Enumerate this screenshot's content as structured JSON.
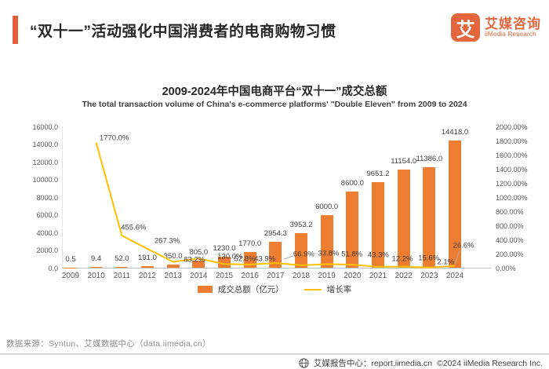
{
  "header": {
    "title": "“双十一”活动强化中国消费者的电商购物习惯",
    "logo": {
      "mark": "艾",
      "name_cn": "艾媒咨询",
      "name_en": "iiMedia Research"
    }
  },
  "chart": {
    "title": "2009-2024年中国电商平台“双十一”成交总额",
    "subtitle": "The total transaction volume of China's e-commerce platforms' \"Double Eleven\" from 2009 to 2024",
    "legend": [
      {
        "label": "成交总额（亿元）",
        "type": "bar",
        "color": "#ed7d31"
      },
      {
        "label": "增长率",
        "type": "line",
        "color": "#ffc000"
      }
    ]
  },
  "chart_data": {
    "type": "bar",
    "title": "2009-2024年中国电商平台“双十一”成交总额",
    "subtitle": "The total transaction volume of China's e-commerce platforms' \"Double Eleven\" from 2009 to 2024",
    "categories": [
      "2009",
      "2010",
      "2011",
      "2012",
      "2013",
      "2014",
      "2015",
      "2016",
      "2017",
      "2018",
      "2019",
      "2020",
      "2021",
      "2022",
      "2023",
      "2024"
    ],
    "series": [
      {
        "name": "成交总额（亿元）",
        "type": "bar",
        "color": "#ed7d31",
        "axis": "left",
        "values": [
          0.5,
          9.4,
          52.0,
          191.0,
          350.0,
          805.0,
          1230.0,
          1770.0,
          2954.3,
          3953.2,
          6000.0,
          8600.0,
          9651.2,
          11154.0,
          11386.0,
          14418.0
        ],
        "labels": [
          "0.5",
          "9.4",
          "52.0",
          "191.0",
          "350.0",
          "805.0",
          "1230.0",
          "1770.0",
          "2954.3",
          "3953.2",
          "6000.0",
          "8600.0",
          "9651.2",
          "11154.0",
          "11386.0",
          "14418.0"
        ]
      },
      {
        "name": "增长率",
        "type": "line",
        "color": "#ffc000",
        "axis": "right",
        "values": [
          null,
          1770.0,
          455.6,
          267.3,
          83.2,
          130.0,
          52.8,
          43.9,
          66.9,
          33.8,
          51.8,
          43.3,
          12.2,
          15.6,
          2.1,
          26.6
        ],
        "labels": [
          "",
          "1770.0%",
          "455.6%",
          "267.3%",
          "83.2%",
          "130.0%",
          "52.8%",
          "43.9%",
          "66.9%",
          "33.8%",
          "51.8%",
          "43.3%",
          "12.2%",
          "15.6%",
          "2.1%",
          "26.6%"
        ]
      }
    ],
    "left_axis": {
      "label": "",
      "min": 0,
      "max": 16000,
      "step": 2000,
      "tick_labels": [
        "0.0",
        "2000.0",
        "4000.0",
        "6000.0",
        "8000.0",
        "10000.0",
        "12000.0",
        "14000.0",
        "16000.0"
      ]
    },
    "right_axis": {
      "label": "",
      "min": 0,
      "max": 2000,
      "step": 200,
      "tick_labels": [
        "0.00%",
        "200.00%",
        "400.00%",
        "600.00%",
        "800.00%",
        "1000.00%",
        "1200.00%",
        "1400.00%",
        "1600.00%",
        "1800.00%",
        "2000.00%"
      ]
    },
    "grid": false,
    "legend_position": "bottom"
  },
  "footer": {
    "source": "数据来源：Syntun、艾媒数据中心（data.iimedia.cn）",
    "report_center": "艾媒报告中心：report.iimedia.cn",
    "copyright": "©2024  iiMedia Research Inc."
  }
}
